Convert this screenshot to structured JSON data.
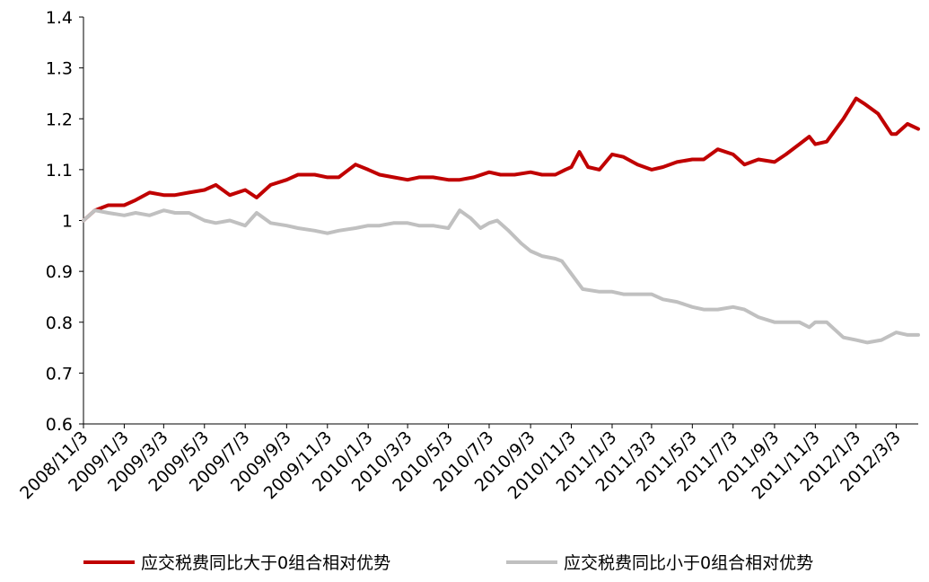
{
  "chart_data": {
    "type": "line",
    "title": "",
    "xlabel": "",
    "ylabel": "",
    "ylim": [
      0.6,
      1.4
    ],
    "y_ticks": [
      "0.6",
      "0.7",
      "0.8",
      "0.9",
      "1",
      "1.1",
      "1.2",
      "1.3",
      "1.4"
    ],
    "x_ticks": [
      "2008/11/3",
      "2009/1/3",
      "2009/3/3",
      "2009/5/3",
      "2009/7/3",
      "2009/9/3",
      "2009/11/3",
      "2010/1/3",
      "2010/3/3",
      "2010/5/3",
      "2010/7/3",
      "2010/9/3",
      "2010/11/3",
      "2011/1/3",
      "2011/3/3",
      "2011/5/3",
      "2011/7/3",
      "2011/9/3",
      "2011/11/3",
      "2012/1/3",
      "2012/3/3"
    ],
    "grid": false,
    "legend_position": "bottom",
    "series": [
      {
        "name": "应交税费同比大于0组合相对优势",
        "color": "#c00000",
        "points": [
          [
            "2008/11/3",
            1.0
          ],
          [
            "2008/11/20",
            1.02
          ],
          [
            "2008/12/10",
            1.03
          ],
          [
            "2009/1/3",
            1.03
          ],
          [
            "2009/1/20",
            1.04
          ],
          [
            "2009/2/10",
            1.055
          ],
          [
            "2009/3/3",
            1.05
          ],
          [
            "2009/3/20",
            1.05
          ],
          [
            "2009/4/10",
            1.055
          ],
          [
            "2009/5/3",
            1.06
          ],
          [
            "2009/5/20",
            1.07
          ],
          [
            "2009/6/10",
            1.05
          ],
          [
            "2009/7/3",
            1.06
          ],
          [
            "2009/7/20",
            1.045
          ],
          [
            "2009/8/10",
            1.07
          ],
          [
            "2009/9/3",
            1.08
          ],
          [
            "2009/9/20",
            1.09
          ],
          [
            "2009/10/15",
            1.09
          ],
          [
            "2009/11/3",
            1.085
          ],
          [
            "2009/11/20",
            1.085
          ],
          [
            "2009/12/15",
            1.11
          ],
          [
            "2010/1/3",
            1.1
          ],
          [
            "2010/1/20",
            1.09
          ],
          [
            "2010/2/10",
            1.085
          ],
          [
            "2010/3/3",
            1.08
          ],
          [
            "2010/3/20",
            1.085
          ],
          [
            "2010/4/10",
            1.085
          ],
          [
            "2010/5/3",
            1.08
          ],
          [
            "2010/5/20",
            1.08
          ],
          [
            "2010/6/10",
            1.085
          ],
          [
            "2010/7/3",
            1.095
          ],
          [
            "2010/7/20",
            1.09
          ],
          [
            "2010/8/10",
            1.09
          ],
          [
            "2010/9/3",
            1.095
          ],
          [
            "2010/9/20",
            1.09
          ],
          [
            "2010/10/10",
            1.09
          ],
          [
            "2010/10/25",
            1.1
          ],
          [
            "2010/11/3",
            1.105
          ],
          [
            "2010/11/15",
            1.135
          ],
          [
            "2010/11/28",
            1.105
          ],
          [
            "2010/12/15",
            1.1
          ],
          [
            "2011/1/3",
            1.13
          ],
          [
            "2011/1/20",
            1.125
          ],
          [
            "2011/2/10",
            1.11
          ],
          [
            "2011/3/3",
            1.1
          ],
          [
            "2011/3/20",
            1.105
          ],
          [
            "2011/4/10",
            1.115
          ],
          [
            "2011/5/3",
            1.12
          ],
          [
            "2011/5/20",
            1.12
          ],
          [
            "2011/6/10",
            1.14
          ],
          [
            "2011/7/3",
            1.13
          ],
          [
            "2011/7/20",
            1.11
          ],
          [
            "2011/8/10",
            1.12
          ],
          [
            "2011/9/3",
            1.115
          ],
          [
            "2011/9/20",
            1.13
          ],
          [
            "2011/10/10",
            1.15
          ],
          [
            "2011/10/25",
            1.165
          ],
          [
            "2011/11/3",
            1.15
          ],
          [
            "2011/11/20",
            1.155
          ],
          [
            "2011/12/15",
            1.2
          ],
          [
            "2012/1/3",
            1.24
          ],
          [
            "2012/1/15",
            1.23
          ],
          [
            "2012/2/5",
            1.21
          ],
          [
            "2012/2/25",
            1.17
          ],
          [
            "2012/3/3",
            1.17
          ],
          [
            "2012/3/20",
            1.19
          ],
          [
            "2012/4/5",
            1.18
          ]
        ]
      },
      {
        "name": "应交税费同比小于0组合相对优势",
        "color": "#c0c0c0",
        "points": [
          [
            "2008/11/3",
            1.0
          ],
          [
            "2008/11/20",
            1.02
          ],
          [
            "2008/12/10",
            1.015
          ],
          [
            "2009/1/3",
            1.01
          ],
          [
            "2009/1/20",
            1.015
          ],
          [
            "2009/2/10",
            1.01
          ],
          [
            "2009/3/3",
            1.02
          ],
          [
            "2009/3/20",
            1.015
          ],
          [
            "2009/4/10",
            1.015
          ],
          [
            "2009/5/3",
            1.0
          ],
          [
            "2009/5/20",
            0.995
          ],
          [
            "2009/6/10",
            1.0
          ],
          [
            "2009/7/3",
            0.99
          ],
          [
            "2009/7/20",
            1.015
          ],
          [
            "2009/8/10",
            0.995
          ],
          [
            "2009/9/3",
            0.99
          ],
          [
            "2009/9/20",
            0.985
          ],
          [
            "2009/10/15",
            0.98
          ],
          [
            "2009/11/3",
            0.975
          ],
          [
            "2009/11/20",
            0.98
          ],
          [
            "2009/12/15",
            0.985
          ],
          [
            "2010/1/3",
            0.99
          ],
          [
            "2010/1/20",
            0.99
          ],
          [
            "2010/2/10",
            0.995
          ],
          [
            "2010/3/3",
            0.995
          ],
          [
            "2010/3/20",
            0.99
          ],
          [
            "2010/4/10",
            0.99
          ],
          [
            "2010/5/3",
            0.985
          ],
          [
            "2010/5/20",
            1.02
          ],
          [
            "2010/6/5",
            1.005
          ],
          [
            "2010/6/20",
            0.985
          ],
          [
            "2010/7/3",
            0.995
          ],
          [
            "2010/7/15",
            1.0
          ],
          [
            "2010/8/1",
            0.98
          ],
          [
            "2010/8/20",
            0.955
          ],
          [
            "2010/9/3",
            0.94
          ],
          [
            "2010/9/20",
            0.93
          ],
          [
            "2010/10/10",
            0.925
          ],
          [
            "2010/10/20",
            0.92
          ],
          [
            "2010/11/3",
            0.895
          ],
          [
            "2010/11/20",
            0.865
          ],
          [
            "2010/12/15",
            0.86
          ],
          [
            "2011/1/3",
            0.86
          ],
          [
            "2011/1/20",
            0.855
          ],
          [
            "2011/2/10",
            0.855
          ],
          [
            "2011/3/3",
            0.855
          ],
          [
            "2011/3/20",
            0.845
          ],
          [
            "2011/4/10",
            0.84
          ],
          [
            "2011/5/3",
            0.83
          ],
          [
            "2011/5/20",
            0.825
          ],
          [
            "2011/6/10",
            0.825
          ],
          [
            "2011/7/3",
            0.83
          ],
          [
            "2011/7/20",
            0.825
          ],
          [
            "2011/8/10",
            0.81
          ],
          [
            "2011/9/3",
            0.8
          ],
          [
            "2011/9/20",
            0.8
          ],
          [
            "2011/10/10",
            0.8
          ],
          [
            "2011/10/25",
            0.79
          ],
          [
            "2011/11/3",
            0.8
          ],
          [
            "2011/11/20",
            0.8
          ],
          [
            "2011/12/15",
            0.77
          ],
          [
            "2012/1/3",
            0.765
          ],
          [
            "2012/1/20",
            0.76
          ],
          [
            "2012/2/10",
            0.765
          ],
          [
            "2012/3/3",
            0.78
          ],
          [
            "2012/3/20",
            0.775
          ],
          [
            "2012/4/5",
            0.775
          ]
        ]
      }
    ]
  }
}
